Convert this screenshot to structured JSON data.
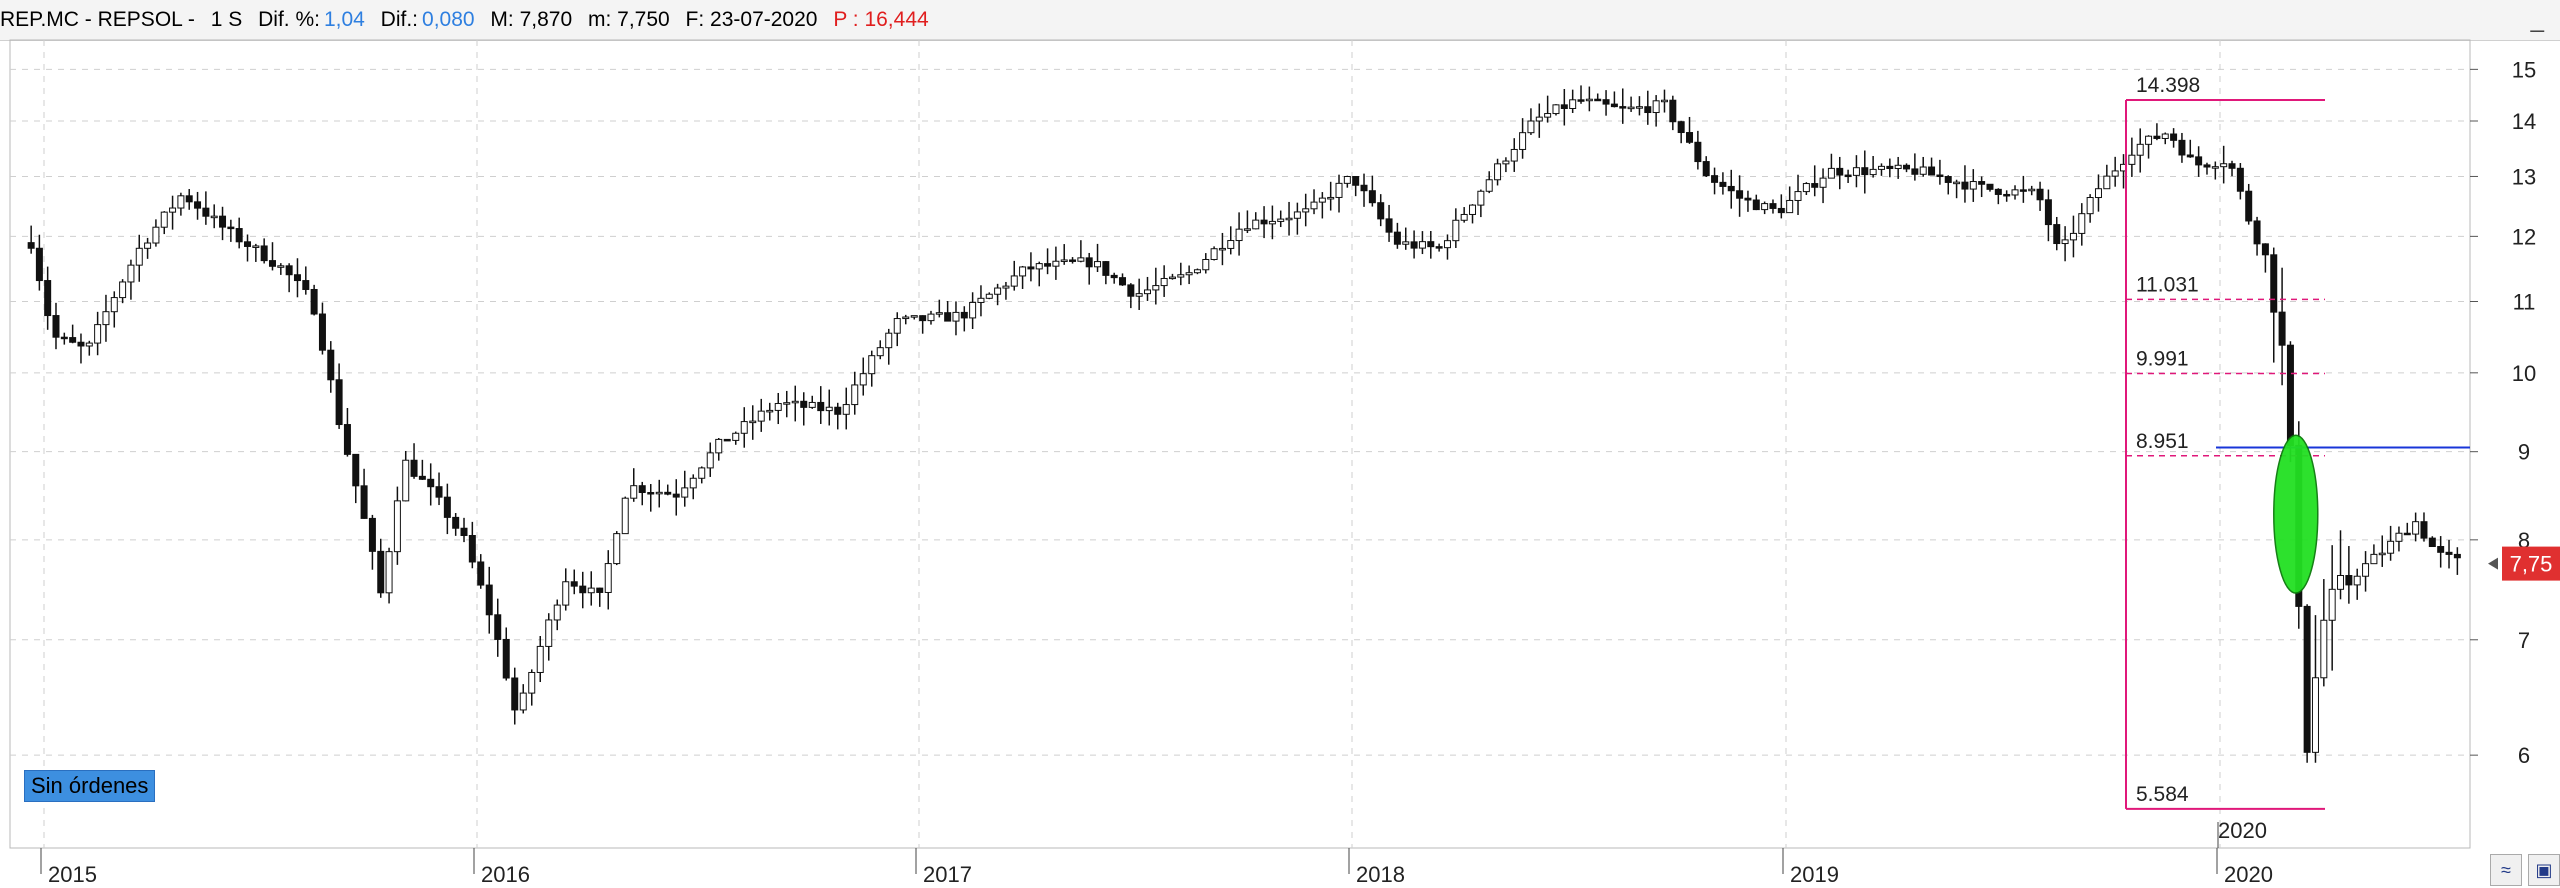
{
  "header": {
    "symbol": "REP.MC - REPSOL -",
    "period": "1 S",
    "dif_pct_label": "Dif. %:",
    "dif_pct_value": "1,04",
    "dif_label": "Dif.:",
    "dif_value": "0,080",
    "max_label": "M: 7,870",
    "min_label": "m: 7,750",
    "date_label": "F: 23-07-2020",
    "p_label": "P : 16,444"
  },
  "badges": {
    "orders": "Sin órdenes"
  },
  "colors": {
    "fib": "#e0187a",
    "hline": "#1836d8",
    "ellipse": "#22e022",
    "last_price": "#e03030"
  },
  "chart_data": {
    "type": "candlestick",
    "scale": "log",
    "ylim": [
      5.3,
      15.6
    ],
    "y_ticks": [
      6,
      7,
      8,
      9,
      10,
      11,
      12,
      13,
      14,
      15
    ],
    "x_ticks": [
      "2015",
      "2016",
      "2017",
      "2018",
      "2019",
      "2020"
    ],
    "x_sub_tick": "2020",
    "last_price": 7.75,
    "last_price_label": "7,75",
    "grid": true,
    "fib_levels": [
      {
        "value": 14.398,
        "label": "14.398"
      },
      {
        "value": 11.031,
        "label": "11.031"
      },
      {
        "value": 9.991,
        "label": "9.991"
      },
      {
        "value": 8.951,
        "label": "8.951"
      },
      {
        "value": 5.584,
        "label": "5.584"
      }
    ],
    "horizontal_line": 9.05,
    "highlight_ellipse": {
      "date": "2020.17",
      "low": 7.45,
      "high": 9.2
    },
    "trend": [
      [
        "2014.97",
        11.9
      ],
      [
        "2015.02",
        10.5
      ],
      [
        "2015.10",
        10.3
      ],
      [
        "2015.22",
        11.8
      ],
      [
        "2015.32",
        12.7
      ],
      [
        "2015.42",
        12.1
      ],
      [
        "2015.55",
        11.5
      ],
      [
        "2015.62",
        11.0
      ],
      [
        "2015.68",
        9.4
      ],
      [
        "2015.74",
        8.2
      ],
      [
        "2015.78",
        7.4
      ],
      [
        "2015.83",
        8.9
      ],
      [
        "2015.90",
        8.5
      ],
      [
        "2015.97",
        8.0
      ],
      [
        "2016.04",
        7.1
      ],
      [
        "2016.09",
        6.3
      ],
      [
        "2016.14",
        6.9
      ],
      [
        "2016.20",
        7.6
      ],
      [
        "2016.28",
        7.4
      ],
      [
        "2016.34",
        8.6
      ],
      [
        "2016.45",
        8.5
      ],
      [
        "2016.55",
        9.1
      ],
      [
        "2016.68",
        9.6
      ],
      [
        "2016.82",
        9.5
      ],
      [
        "2016.95",
        10.7
      ],
      [
        "2017.10",
        10.8
      ],
      [
        "2017.25",
        11.5
      ],
      [
        "2017.40",
        11.6
      ],
      [
        "2017.50",
        11.1
      ],
      [
        "2017.62",
        11.4
      ],
      [
        "2017.75",
        12.2
      ],
      [
        "2017.90",
        12.4
      ],
      [
        "2018.00",
        13.0
      ],
      [
        "2018.10",
        11.9
      ],
      [
        "2018.20",
        11.8
      ],
      [
        "2018.30",
        12.8
      ],
      [
        "2018.42",
        14.0
      ],
      [
        "2018.52",
        14.4
      ],
      [
        "2018.62",
        14.2
      ],
      [
        "2018.72",
        14.3
      ],
      [
        "2018.82",
        13.0
      ],
      [
        "2018.90",
        12.6
      ],
      [
        "2018.98",
        12.4
      ],
      [
        "2019.10",
        13.1
      ],
      [
        "2019.30",
        13.1
      ],
      [
        "2019.45",
        12.8
      ],
      [
        "2019.58",
        12.7
      ],
      [
        "2019.63",
        11.7
      ],
      [
        "2019.72",
        12.8
      ],
      [
        "2019.80",
        13.5
      ],
      [
        "2019.88",
        13.8
      ],
      [
        "2019.94",
        13.2
      ],
      [
        "2020.02",
        13.3
      ],
      [
        "2020.07",
        12.2
      ],
      [
        "2020.11",
        11.6
      ],
      [
        "2020.14",
        10.5
      ],
      [
        "2020.17",
        8.3
      ],
      [
        "2020.20",
        6.1
      ],
      [
        "2020.24",
        7.2
      ],
      [
        "2020.30",
        7.6
      ],
      [
        "2020.38",
        7.9
      ],
      [
        "2020.45",
        8.2
      ],
      [
        "2020.50",
        7.85
      ],
      [
        "2020.56",
        7.75
      ]
    ]
  }
}
